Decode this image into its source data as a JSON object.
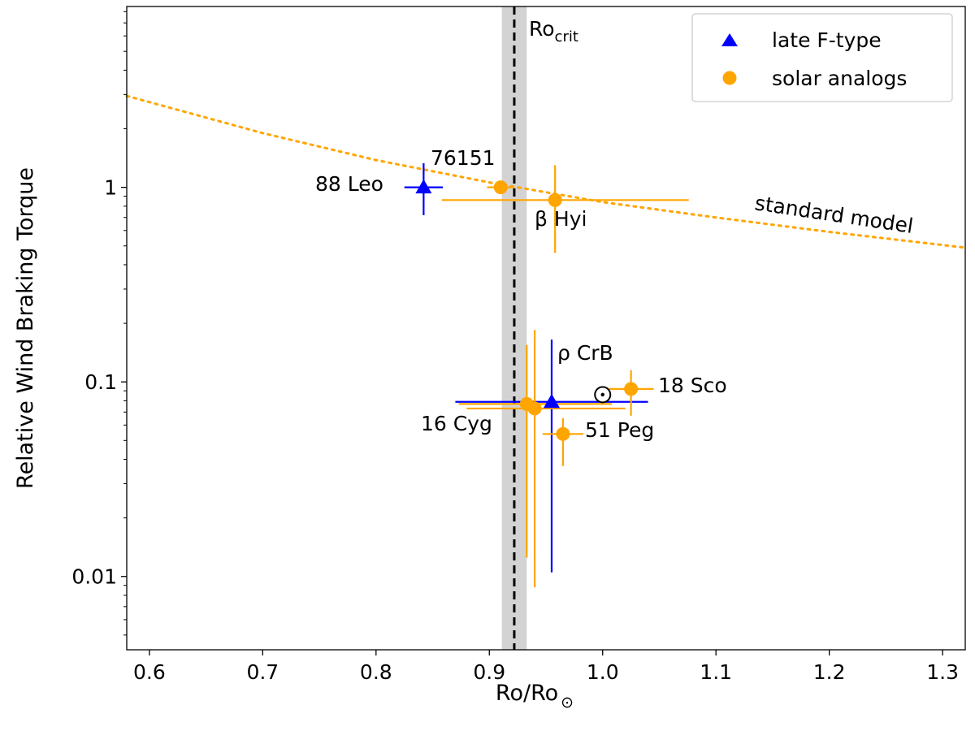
{
  "chart_data": {
    "type": "scatter",
    "xlabel": "Ro/Ro",
    "xlabel_sub": "⊙",
    "ylabel": "Relative Wind Braking Torque",
    "x_scale": "linear",
    "y_scale": "log",
    "xlim": [
      0.58,
      1.32
    ],
    "ylim": [
      0.0042,
      8.5
    ],
    "x_ticks": [
      0.6,
      0.7,
      0.8,
      0.9,
      1.0,
      1.1,
      1.2,
      1.3
    ],
    "x_tick_labels": [
      "0.6",
      "0.7",
      "0.8",
      "0.9",
      "1.0",
      "1.1",
      "1.2",
      "1.3"
    ],
    "y_ticks": [
      0.01,
      0.1,
      1
    ],
    "y_tick_labels": [
      "0.01",
      "0.1",
      "1"
    ],
    "grid": false,
    "legend_position": "top-right",
    "colors": {
      "late_f": "#0000ff",
      "solar": "#ffa500",
      "band": "#d3d3d3",
      "line": "#000000"
    },
    "series": [
      {
        "name": "late F-type",
        "marker": "triangle",
        "points": [
          {
            "label": "88 Leo",
            "x": 0.842,
            "y": 1.0,
            "x_err": [
              0.017,
              0.017
            ],
            "y_lo": 0.72,
            "y_hi": 1.33
          },
          {
            "label": "ρ CrB",
            "x": 0.955,
            "y": 0.079,
            "x_err": [
              0.085,
              0.085
            ],
            "y_lo": 0.0105,
            "y_hi": 0.165
          }
        ]
      },
      {
        "name": "solar analogs",
        "marker": "circle",
        "points": [
          {
            "label": "76151",
            "x": 0.91,
            "y": 1.0,
            "x_err": [
              0.012,
              0.012
            ],
            "y_lo": 0.93,
            "y_hi": 1.08
          },
          {
            "label": "β Hyi",
            "x": 0.958,
            "y": 0.86,
            "x_err": [
              0.1,
              0.118
            ],
            "y_lo": 0.46,
            "y_hi": 1.3
          },
          {
            "label": "16 Cyg A",
            "x": 0.933,
            "y": 0.077,
            "x_err": [
              0.06,
              0.075
            ],
            "y_lo": 0.0125,
            "y_hi": 0.155
          },
          {
            "label": "16 Cyg B",
            "x": 0.94,
            "y": 0.073,
            "x_err": [
              0.06,
              0.08
            ],
            "y_lo": 0.0088,
            "y_hi": 0.185
          },
          {
            "label": "51 Peg",
            "x": 0.965,
            "y": 0.054,
            "x_err": [
              0.018,
              0.018
            ],
            "y_lo": 0.037,
            "y_hi": 0.065
          },
          {
            "label": "18 Sco",
            "x": 1.025,
            "y": 0.092,
            "x_err": [
              0.02,
              0.02
            ],
            "y_lo": 0.067,
            "y_hi": 0.115
          }
        ]
      }
    ],
    "sun": {
      "x": 1.0,
      "y": 0.086
    },
    "ro_crit": {
      "x": 0.922,
      "band": [
        0.911,
        0.933
      ],
      "label": "Ro",
      "label_sub": "crit"
    },
    "standard_model": {
      "label": "standard model",
      "points": [
        [
          0.58,
          2.95
        ],
        [
          0.7,
          1.9
        ],
        [
          0.8,
          1.38
        ],
        [
          0.9,
          1.06
        ],
        [
          1.0,
          0.84
        ],
        [
          1.1,
          0.7
        ],
        [
          1.2,
          0.59
        ],
        [
          1.32,
          0.49
        ]
      ]
    },
    "annotations": {
      "leo": "88 Leo",
      "hd76151": "76151",
      "hyi": "β Hyi",
      "crb": "ρ CrB",
      "sco": "18 Sco",
      "cyg": "16 Cyg",
      "peg": "51 Peg",
      "model": "standard model"
    },
    "legend": [
      {
        "label": "late F-type",
        "marker": "triangle"
      },
      {
        "label": "solar analogs",
        "marker": "circle"
      }
    ]
  }
}
